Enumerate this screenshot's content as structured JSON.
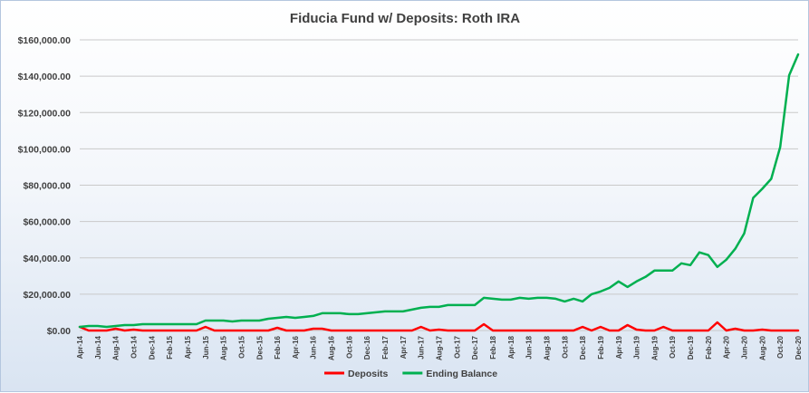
{
  "chart_data": {
    "type": "line",
    "title": "Fiducia Fund w/ Deposits: Roth IRA",
    "xlabel": "",
    "ylabel": "",
    "ylim": [
      0,
      160000
    ],
    "y_ticks": [
      0,
      20000,
      40000,
      60000,
      80000,
      100000,
      120000,
      140000,
      160000
    ],
    "y_tick_labels": [
      "$0.00",
      "$20,000.00",
      "$40,000.00",
      "$60,000.00",
      "$80,000.00",
      "$100,000.00",
      "$120,000.00",
      "$140,000.00",
      "$160,000.00"
    ],
    "x_tick_labels": [
      "Apr-14",
      "Jun-14",
      "Aug-14",
      "Oct-14",
      "Dec-14",
      "Feb-15",
      "Apr-15",
      "Jun-15",
      "Aug-15",
      "Oct-15",
      "Dec-15",
      "Feb-16",
      "Apr-16",
      "Jun-16",
      "Aug-16",
      "Oct-16",
      "Dec-16",
      "Feb-17",
      "Apr-17",
      "Jun-17",
      "Aug-17",
      "Oct-17",
      "Dec-17",
      "Feb-18",
      "Apr-18",
      "Jun-18",
      "Aug-18",
      "Oct-18",
      "Dec-18",
      "Feb-19",
      "Apr-19",
      "Jun-19",
      "Aug-19",
      "Oct-19",
      "Dec-19",
      "Feb-20",
      "Apr-20",
      "Jun-20",
      "Aug-20",
      "Oct-20",
      "Dec-20"
    ],
    "grid": true,
    "legend_position": "bottom",
    "categories": [
      "Apr-14",
      "May-14",
      "Jun-14",
      "Jul-14",
      "Aug-14",
      "Sep-14",
      "Oct-14",
      "Nov-14",
      "Dec-14",
      "Jan-15",
      "Feb-15",
      "Mar-15",
      "Apr-15",
      "May-15",
      "Jun-15",
      "Jul-15",
      "Aug-15",
      "Sep-15",
      "Oct-15",
      "Nov-15",
      "Dec-15",
      "Jan-16",
      "Feb-16",
      "Mar-16",
      "Apr-16",
      "May-16",
      "Jun-16",
      "Jul-16",
      "Aug-16",
      "Sep-16",
      "Oct-16",
      "Nov-16",
      "Dec-16",
      "Jan-17",
      "Feb-17",
      "Mar-17",
      "Apr-17",
      "May-17",
      "Jun-17",
      "Jul-17",
      "Aug-17",
      "Sep-17",
      "Oct-17",
      "Nov-17",
      "Dec-17",
      "Jan-18",
      "Feb-18",
      "Mar-18",
      "Apr-18",
      "May-18",
      "Jun-18",
      "Jul-18",
      "Aug-18",
      "Sep-18",
      "Oct-18",
      "Nov-18",
      "Dec-18",
      "Jan-19",
      "Feb-19",
      "Mar-19",
      "Apr-19",
      "May-19",
      "Jun-19",
      "Jul-19",
      "Aug-19",
      "Sep-19",
      "Oct-19",
      "Nov-19",
      "Dec-19",
      "Jan-20",
      "Feb-20",
      "Mar-20",
      "Apr-20",
      "May-20",
      "Jun-20",
      "Jul-20",
      "Aug-20",
      "Sep-20",
      "Oct-20",
      "Nov-20",
      "Dec-20"
    ],
    "series": [
      {
        "name": "Deposits",
        "color": "#ff0000",
        "values": [
          2000,
          0,
          0,
          0,
          1000,
          0,
          500,
          0,
          0,
          0,
          0,
          0,
          0,
          0,
          2000,
          0,
          0,
          0,
          0,
          0,
          0,
          0,
          1500,
          0,
          0,
          0,
          1000,
          1000,
          0,
          0,
          0,
          0,
          0,
          0,
          0,
          0,
          0,
          0,
          2000,
          0,
          500,
          0,
          0,
          0,
          0,
          3500,
          0,
          0,
          0,
          0,
          0,
          0,
          0,
          0,
          0,
          0,
          2000,
          0,
          2000,
          0,
          0,
          3000,
          500,
          0,
          0,
          2000,
          0,
          0,
          0,
          0,
          0,
          4500,
          0,
          1000,
          0,
          0,
          500,
          0,
          0,
          0,
          0
        ]
      },
      {
        "name": "Ending Balance",
        "color": "#00b050",
        "values": [
          2000,
          2500,
          2500,
          2000,
          2500,
          3000,
          3000,
          3500,
          3500,
          3500,
          3500,
          3500,
          3500,
          3500,
          5500,
          5500,
          5500,
          5000,
          5500,
          5500,
          5500,
          6500,
          7000,
          7500,
          7000,
          7500,
          8000,
          9500,
          9500,
          9500,
          9000,
          9000,
          9500,
          10000,
          10500,
          10500,
          10500,
          11500,
          12500,
          13000,
          13000,
          14000,
          14000,
          14000,
          14000,
          18000,
          17500,
          17000,
          17000,
          18000,
          17500,
          18000,
          18000,
          17500,
          16000,
          17500,
          16000,
          20000,
          21500,
          23500,
          27000,
          24000,
          27000,
          29500,
          33000,
          33000,
          33000,
          37000,
          36000,
          43000,
          41500,
          35000,
          39000,
          45000,
          53500,
          73000,
          78000,
          83500,
          101000,
          140500,
          152000
        ]
      }
    ]
  }
}
